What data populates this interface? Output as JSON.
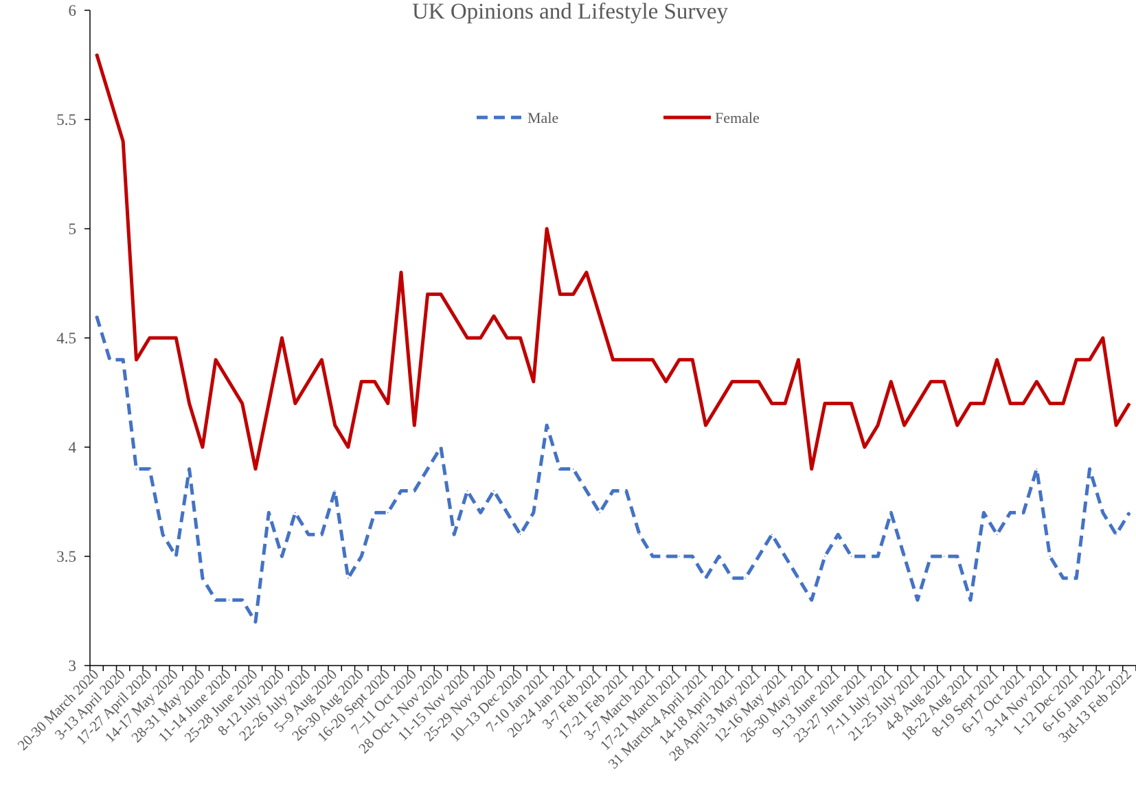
{
  "chart_data": {
    "type": "line",
    "title": "UK Opinions and Lifestyle Survey",
    "xlabel": "",
    "ylabel": "",
    "ylim": [
      3,
      6
    ],
    "y_ticks": [
      "3",
      "3.5",
      "4",
      "4.5",
      "5",
      "5.5",
      "6"
    ],
    "grid": false,
    "legend_position": "top-center",
    "categories": [
      "20-30 March 2020",
      "",
      "3-13 April 2020",
      "",
      "17-27 April 2020",
      "",
      "14-17 May 2020",
      "",
      "28-31 May 2020",
      "",
      "11-14 June 2020",
      "",
      "25-28 June 2020",
      "",
      "8-12 July 2020",
      "",
      "22-26 July 2020",
      "",
      "5–9 Aug 2020",
      "",
      "26-30 Aug 2020",
      "",
      "16-20 Sept 2020",
      "",
      "7–11 Oct 2020",
      "",
      "28 Oct-1 Nov 2020",
      "",
      "11-15 Nov 2020",
      "",
      "25-29 Nov 2020",
      "",
      "10–13 Dec 2020",
      "",
      "7-10 Jan 2021",
      "",
      "20-24 Jan 2021",
      "",
      "3-7 Feb 2021",
      "",
      "17-21 Feb 2021",
      "",
      "3-7 March 2021",
      "",
      "17-21 March 2021",
      "",
      "31 March-4 April 2021",
      "",
      "14-18 April 2021",
      "",
      "28 April-3 May 2021",
      "",
      "12-16 May 2021",
      "",
      "26-30 May 2021",
      "",
      "9-13 June 2021",
      "",
      "23-27 June 2021",
      "",
      "7-11 July 2021",
      "",
      "21-25 July 2021",
      "",
      "4-8 Aug 2021",
      "",
      "18-22 Aug 2021",
      "",
      "8-19 Sept 2021",
      "",
      "6-17 Oct 2021",
      "",
      "3-14 Nov 2021",
      "",
      "1-12 Dec 2021",
      "",
      "6-16 Jan 2022",
      "",
      "3rd-13 Feb 2022"
    ],
    "series": [
      {
        "name": "Male",
        "color": "#4472C4",
        "dash": "dashed",
        "values": [
          4.6,
          4.4,
          4.4,
          3.9,
          3.9,
          3.6,
          3.5,
          3.9,
          3.4,
          3.3,
          3.3,
          3.3,
          3.2,
          3.7,
          3.5,
          3.7,
          3.6,
          3.6,
          3.8,
          3.4,
          3.5,
          3.7,
          3.7,
          3.8,
          3.8,
          3.9,
          4.0,
          3.6,
          3.8,
          3.7,
          3.8,
          3.7,
          3.6,
          3.7,
          4.1,
          3.9,
          3.9,
          3.8,
          3.7,
          3.8,
          3.8,
          3.6,
          3.5,
          3.5,
          3.5,
          3.5,
          3.4,
          3.5,
          3.4,
          3.4,
          3.5,
          3.6,
          3.5,
          3.4,
          3.3,
          3.5,
          3.6,
          3.5,
          3.5,
          3.5,
          3.7,
          3.5,
          3.3,
          3.5,
          3.5,
          3.5,
          3.3,
          3.7,
          3.6,
          3.7,
          3.7,
          3.9,
          3.5,
          3.4,
          3.4,
          3.9,
          3.7,
          3.6,
          3.7
        ]
      },
      {
        "name": "Female",
        "color": "#C00000",
        "dash": "solid",
        "values": [
          5.8,
          5.6,
          5.4,
          4.4,
          4.5,
          4.5,
          4.5,
          4.2,
          4.0,
          4.4,
          4.3,
          4.2,
          3.9,
          4.2,
          4.5,
          4.2,
          4.3,
          4.4,
          4.1,
          4.0,
          4.3,
          4.3,
          4.2,
          4.8,
          4.1,
          4.7,
          4.7,
          4.6,
          4.5,
          4.5,
          4.6,
          4.5,
          4.5,
          4.3,
          5.0,
          4.7,
          4.7,
          4.8,
          4.6,
          4.4,
          4.4,
          4.4,
          4.4,
          4.3,
          4.4,
          4.4,
          4.1,
          4.2,
          4.3,
          4.3,
          4.3,
          4.2,
          4.2,
          4.4,
          3.9,
          4.2,
          4.2,
          4.2,
          4.0,
          4.1,
          4.3,
          4.1,
          4.2,
          4.3,
          4.3,
          4.1,
          4.2,
          4.2,
          4.4,
          4.2,
          4.2,
          4.3,
          4.2,
          4.2,
          4.4,
          4.4,
          4.5,
          4.1,
          4.2
        ]
      }
    ]
  }
}
